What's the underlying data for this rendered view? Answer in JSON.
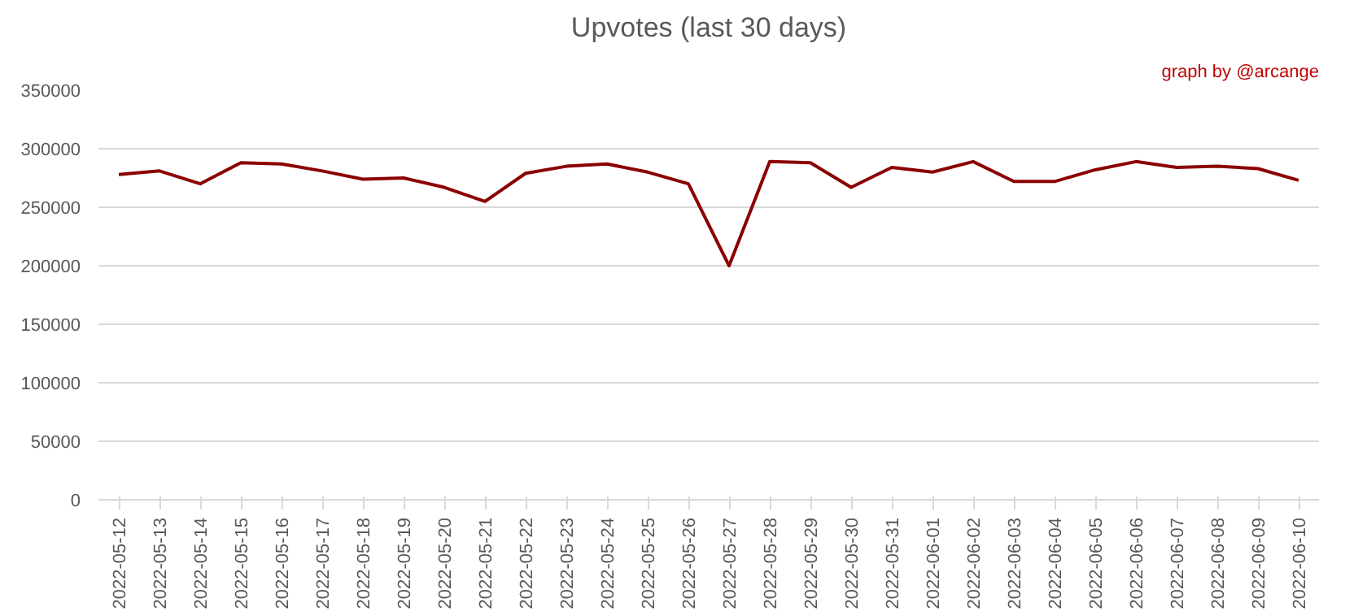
{
  "chart_data": {
    "type": "line",
    "title": "Upvotes (last 30 days)",
    "annotations": [
      "graph by @arcange"
    ],
    "categories": [
      "2022-05-12",
      "2022-05-13",
      "2022-05-14",
      "2022-05-15",
      "2022-05-16",
      "2022-05-17",
      "2022-05-18",
      "2022-05-19",
      "2022-05-20",
      "2022-05-21",
      "2022-05-22",
      "2022-05-23",
      "2022-05-24",
      "2022-05-25",
      "2022-05-26",
      "2022-05-27",
      "2022-05-28",
      "2022-05-29",
      "2022-05-30",
      "2022-05-31",
      "2022-06-01",
      "2022-06-02",
      "2022-06-03",
      "2022-06-04",
      "2022-06-05",
      "2022-06-06",
      "2022-06-07",
      "2022-06-08",
      "2022-06-09",
      "2022-06-10"
    ],
    "series": [
      {
        "color": "#8b0000",
        "values": [
          278000,
          281000,
          270000,
          288000,
          287000,
          281000,
          274000,
          275000,
          267000,
          255000,
          279000,
          285000,
          287000,
          280000,
          270000,
          200000,
          289000,
          288000,
          267000,
          284000,
          280000,
          289000,
          272000,
          272000,
          282000,
          289000,
          284000,
          285000,
          283000,
          273000
        ]
      }
    ],
    "ylim": [
      0,
      350000
    ],
    "yticks": [
      0,
      50000,
      100000,
      150000,
      200000,
      250000,
      300000,
      350000
    ],
    "grid": "y",
    "marker": "none",
    "line_style": "solid"
  }
}
